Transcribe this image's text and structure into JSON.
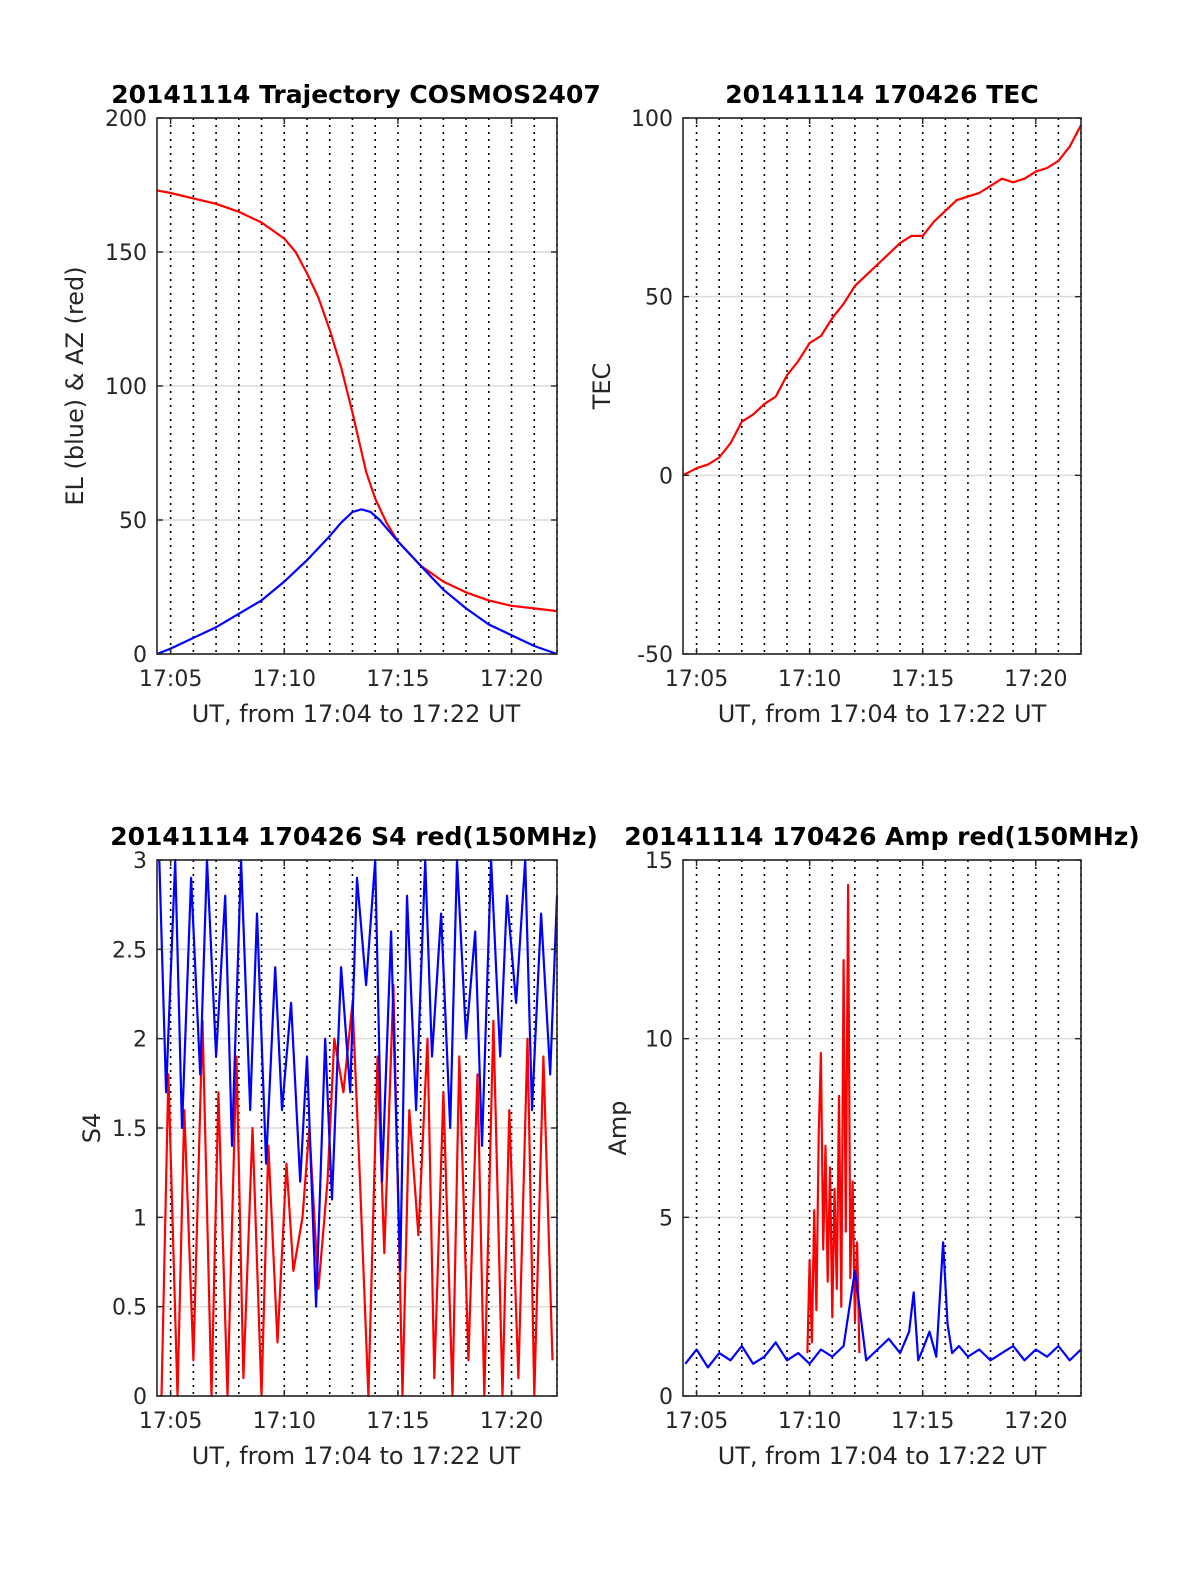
{
  "chart_data": [
    {
      "id": "trajectory",
      "type": "line",
      "title": "20141114 Trajectory COSMOS2407",
      "xlabel": "UT, from 17:04 to 17:22 UT",
      "ylabel": "EL (blue) & AZ (red)",
      "xlim": [
        4.4,
        22
      ],
      "ylim": [
        0,
        200
      ],
      "xticks": [
        5,
        10,
        15,
        20
      ],
      "xticklabels": [
        "17:05",
        "17:10",
        "17:15",
        "17:20"
      ],
      "yticks": [
        0,
        50,
        100,
        150,
        200
      ],
      "yticklabels": [
        "0",
        "50",
        "100",
        "150",
        "200"
      ],
      "grid": true,
      "series": [
        {
          "name": "AZ",
          "color": "#ff0000",
          "x": [
            4.4,
            5,
            6,
            7,
            8,
            9,
            10,
            10.5,
            11,
            11.5,
            12,
            12.5,
            13,
            13.3,
            13.6,
            14,
            14.5,
            15,
            16,
            17,
            18,
            19,
            20,
            21,
            22
          ],
          "y": [
            173,
            172,
            170,
            168,
            165,
            161,
            155,
            150,
            142,
            133,
            121,
            107,
            90,
            79,
            68,
            58,
            49,
            42,
            33,
            27,
            23,
            20,
            18,
            17,
            16
          ]
        },
        {
          "name": "EL",
          "color": "#0000ff",
          "x": [
            4.4,
            5,
            6,
            7,
            8,
            9,
            10,
            11,
            12,
            12.5,
            13,
            13.4,
            13.8,
            14.2,
            15,
            16,
            17,
            18,
            19,
            20,
            21,
            22
          ],
          "y": [
            0,
            2,
            6,
            10,
            15,
            20,
            27,
            35,
            44,
            49,
            53,
            54,
            53,
            50,
            42,
            33,
            24,
            17,
            11,
            7,
            3,
            0
          ]
        }
      ]
    },
    {
      "id": "tec",
      "type": "line",
      "title": "20141114 170426 TEC",
      "xlabel": "UT, from 17:04 to 17:22 UT",
      "ylabel": "TEC",
      "xlim": [
        4.4,
        22
      ],
      "ylim": [
        -50,
        100
      ],
      "xticks": [
        5,
        10,
        15,
        20
      ],
      "xticklabels": [
        "17:05",
        "17:10",
        "17:15",
        "17:20"
      ],
      "yticks": [
        -50,
        0,
        50,
        100
      ],
      "yticklabels": [
        "-50",
        "0",
        "50",
        "100"
      ],
      "grid": true,
      "series": [
        {
          "name": "TEC",
          "color": "#ff0000",
          "x": [
            4.4,
            5,
            5.5,
            6,
            6.5,
            7,
            7.5,
            8,
            8.5,
            9,
            9.5,
            10,
            10.5,
            11,
            11.5,
            12,
            12.5,
            13,
            13.5,
            14,
            14.5,
            15,
            15.5,
            16,
            16.5,
            17,
            17.5,
            18,
            18.5,
            19,
            19.5,
            20,
            20.5,
            21,
            21.5,
            22
          ],
          "y": [
            0,
            2,
            3,
            5,
            9,
            15,
            17,
            20,
            22,
            28,
            32,
            37,
            39,
            44,
            48,
            53,
            56,
            59,
            62,
            65,
            67,
            67,
            71,
            74,
            77,
            78,
            79,
            81,
            83,
            82,
            83,
            85,
            86,
            88,
            92,
            98
          ]
        }
      ]
    },
    {
      "id": "s4",
      "type": "line",
      "title": "20141114 170426 S4 red(150MHz)",
      "xlabel": "UT, from 17:04 to 17:22 UT",
      "ylabel": "S4",
      "xlim": [
        4.4,
        22
      ],
      "ylim": [
        0,
        3
      ],
      "xticks": [
        5,
        10,
        15,
        20
      ],
      "xticklabels": [
        "17:05",
        "17:10",
        "17:15",
        "17:20"
      ],
      "yticks": [
        0,
        0.5,
        1,
        1.5,
        2,
        2.5,
        3
      ],
      "yticklabels": [
        "0",
        "0.5",
        "1",
        "1.5",
        "2",
        "2.5",
        "3"
      ],
      "grid": true,
      "series": [
        {
          "name": "red",
          "color": "#ff0000",
          "x": [
            4.6,
            4.9,
            5.3,
            5.6,
            6.0,
            6.4,
            6.8,
            7.1,
            7.5,
            7.9,
            8.2,
            8.6,
            9.0,
            9.3,
            9.7,
            10.1,
            10.4,
            10.8,
            11.1,
            11.5,
            11.9,
            12.2,
            12.6,
            13.0,
            13.3,
            13.7,
            14.1,
            14.4,
            14.8,
            15.2,
            15.5,
            15.9,
            16.3,
            16.6,
            17.0,
            17.4,
            17.7,
            18.1,
            18.5,
            18.8,
            19.2,
            19.6,
            19.9,
            20.3,
            20.7,
            21.0,
            21.4,
            21.8
          ],
          "y": [
            0,
            1.8,
            0,
            1.6,
            0.2,
            2.1,
            0,
            1.7,
            0,
            1.9,
            0.1,
            1.5,
            0,
            1.4,
            0.3,
            1.3,
            0.7,
            1.0,
            1.5,
            0.6,
            1.2,
            2.0,
            1.7,
            2.2,
            1.3,
            0,
            1.9,
            0.8,
            2.3,
            0,
            1.6,
            0.9,
            2.0,
            0.1,
            1.7,
            0,
            1.9,
            0.2,
            1.8,
            0,
            2.1,
            0,
            1.6,
            0.1,
            2.0,
            0,
            1.9,
            0.2
          ]
        },
        {
          "name": "blue",
          "color": "#0000ff",
          "x": [
            4.5,
            4.8,
            5.2,
            5.5,
            5.9,
            6.3,
            6.6,
            7.0,
            7.4,
            7.7,
            8.1,
            8.5,
            8.8,
            9.2,
            9.6,
            9.9,
            10.3,
            10.7,
            11.0,
            11.4,
            11.8,
            12.1,
            12.5,
            12.9,
            13.2,
            13.6,
            14.0,
            14.3,
            14.7,
            15.1,
            15.4,
            15.8,
            16.2,
            16.5,
            16.9,
            17.3,
            17.6,
            18.0,
            18.4,
            18.7,
            19.1,
            19.5,
            19.8,
            20.2,
            20.6,
            20.9,
            21.3,
            21.7,
            22.0
          ],
          "y": [
            3,
            1.7,
            3,
            1.5,
            2.9,
            1.8,
            3,
            1.9,
            2.8,
            1.4,
            3,
            1.6,
            2.7,
            1.3,
            2.4,
            1.6,
            2.2,
            1.2,
            1.9,
            0.5,
            2.0,
            1.1,
            2.4,
            1.7,
            2.9,
            2.3,
            3,
            1.2,
            2.6,
            0.7,
            2.8,
            1.6,
            3,
            1.9,
            2.7,
            1.5,
            3,
            2.0,
            2.6,
            1.4,
            3,
            1.9,
            2.8,
            2.2,
            3,
            1.6,
            2.7,
            1.8,
            2.8
          ]
        }
      ]
    },
    {
      "id": "amp",
      "type": "line",
      "title": "20141114 170426 Amp red(150MHz)",
      "xlabel": "UT, from 17:04 to 17:22 UT",
      "ylabel": "Amp",
      "xlim": [
        4.4,
        22
      ],
      "ylim": [
        0,
        15
      ],
      "xticks": [
        5,
        10,
        15,
        20
      ],
      "xticklabels": [
        "17:05",
        "17:10",
        "17:15",
        "17:20"
      ],
      "yticks": [
        0,
        5,
        10,
        15
      ],
      "yticklabels": [
        "0",
        "5",
        "10",
        "15"
      ],
      "grid": true,
      "series": [
        {
          "name": "red",
          "color": "#ff0000",
          "x": [
            9.9,
            10.0,
            10.1,
            10.2,
            10.3,
            10.4,
            10.5,
            10.6,
            10.7,
            10.8,
            10.9,
            11.0,
            11.1,
            11.2,
            11.3,
            11.4,
            11.5,
            11.6,
            11.7,
            11.8,
            11.9,
            12.0,
            12.1,
            12.2
          ],
          "y": [
            1.2,
            3.8,
            1.5,
            5.2,
            2.4,
            7.3,
            9.6,
            4.1,
            7.0,
            3.2,
            6.4,
            2.2,
            5.8,
            3.0,
            8.4,
            2.5,
            12.2,
            4.6,
            14.3,
            3.3,
            6.0,
            2.1,
            4.3,
            1.2
          ]
        },
        {
          "name": "blue",
          "color": "#0000ff",
          "x": [
            4.5,
            5.0,
            5.5,
            6.0,
            6.5,
            7.0,
            7.5,
            8.0,
            8.5,
            9.0,
            9.5,
            10.0,
            10.5,
            11.0,
            11.5,
            12.0,
            12.5,
            13.0,
            13.5,
            14.0,
            14.4,
            14.6,
            14.8,
            15.0,
            15.3,
            15.6,
            15.9,
            16.1,
            16.3,
            16.6,
            17.0,
            17.5,
            18.0,
            18.5,
            19.0,
            19.5,
            20.0,
            20.5,
            21.0,
            21.5,
            22.0
          ],
          "y": [
            0.9,
            1.3,
            0.8,
            1.2,
            1.0,
            1.4,
            0.9,
            1.1,
            1.5,
            1.0,
            1.2,
            0.9,
            1.3,
            1.1,
            1.4,
            3.5,
            1.0,
            1.3,
            1.6,
            1.2,
            1.8,
            2.9,
            1.0,
            1.3,
            1.8,
            1.1,
            4.3,
            2.0,
            1.2,
            1.4,
            1.1,
            1.3,
            1.0,
            1.2,
            1.4,
            1.0,
            1.3,
            1.1,
            1.4,
            1.0,
            1.3
          ]
        }
      ]
    }
  ]
}
